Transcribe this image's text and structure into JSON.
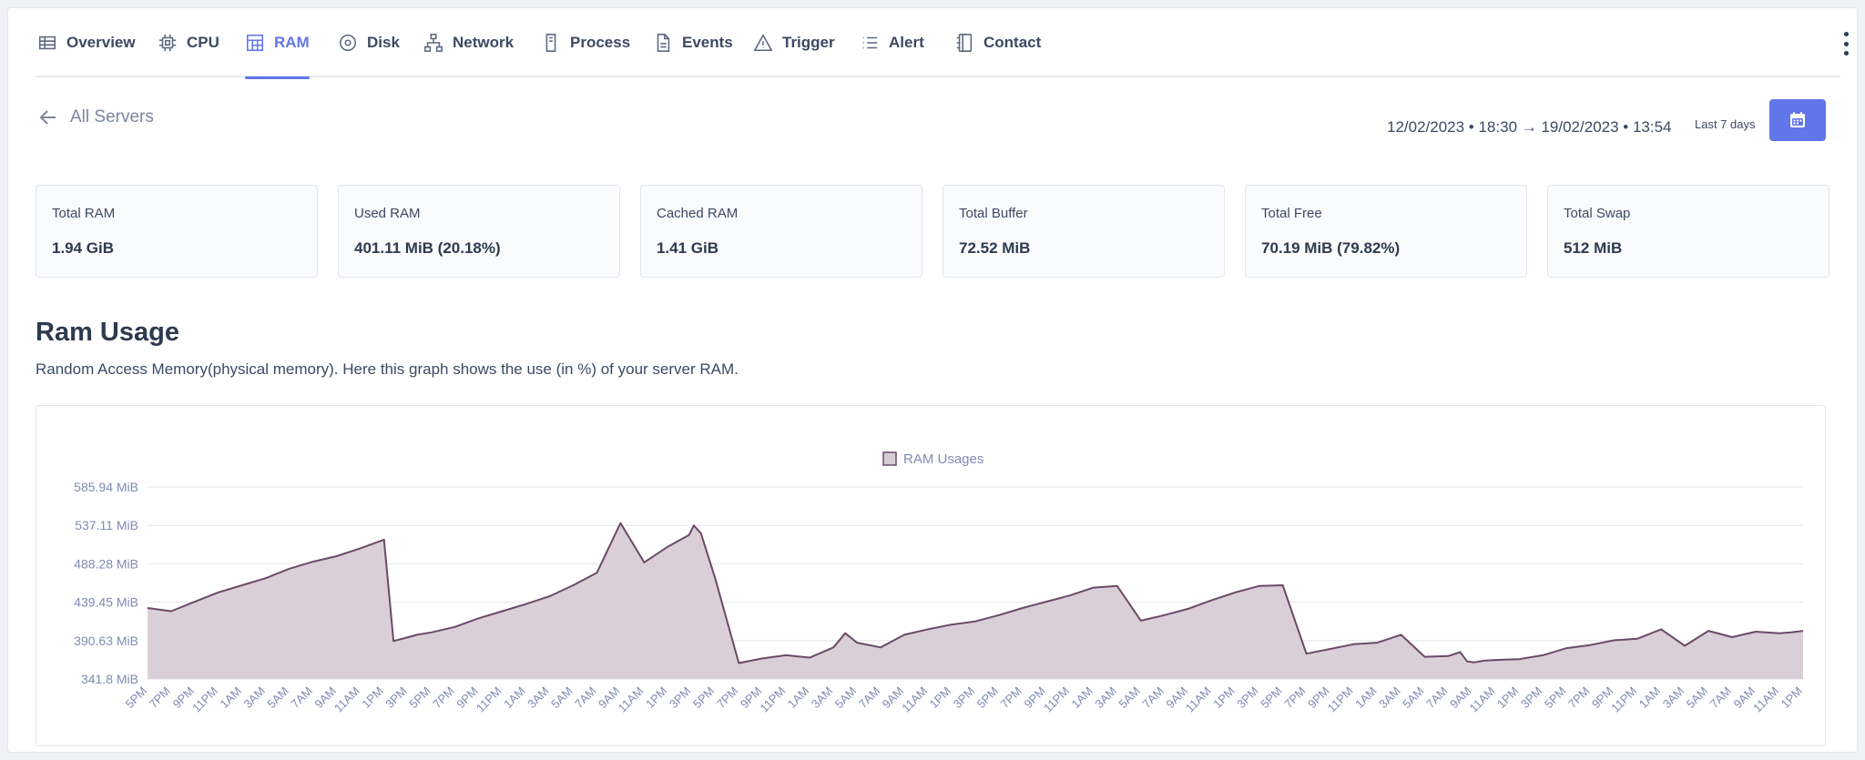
{
  "tabs": [
    {
      "label": "Overview",
      "icon": "table-icon",
      "active": false
    },
    {
      "label": "CPU",
      "icon": "cpu-icon",
      "active": false
    },
    {
      "label": "RAM",
      "icon": "layout-icon",
      "active": true
    },
    {
      "label": "Disk",
      "icon": "disk-icon",
      "active": false
    },
    {
      "label": "Network",
      "icon": "network-icon",
      "active": false
    },
    {
      "label": "Process",
      "icon": "process-icon",
      "active": false
    },
    {
      "label": "Events",
      "icon": "file-icon",
      "active": false
    },
    {
      "label": "Trigger",
      "icon": "warning-icon",
      "active": false
    },
    {
      "label": "Alert",
      "icon": "list-icon",
      "active": false
    },
    {
      "label": "Contact",
      "icon": "contact-book-icon",
      "active": false
    }
  ],
  "back_label": "All Servers",
  "date_range": "12/02/2023 • 18:30 → 19/02/2023 • 13:54",
  "preset": "Last 7 days",
  "cards": [
    {
      "label": "Total RAM",
      "value": "1.94 GiB"
    },
    {
      "label": "Used RAM",
      "value": "401.11 MiB (20.18%)"
    },
    {
      "label": "Cached RAM",
      "value": "1.41 GiB"
    },
    {
      "label": "Total Buffer",
      "value": "72.52 MiB"
    },
    {
      "label": "Total Free",
      "value": "70.19 MiB (79.82%)"
    },
    {
      "label": "Total Swap",
      "value": "512 MiB"
    }
  ],
  "section": {
    "title": "Ram Usage",
    "description": "Random Access Memory(physical memory). Here this graph shows the use (in %) of your server RAM."
  },
  "colors": {
    "accent": "#6176e8",
    "series_line": "#6b4a68",
    "series_fill": "#d8ccd6"
  },
  "chart_data": {
    "type": "area",
    "legend": "RAM Usages",
    "legend_position": "top-center",
    "grid": true,
    "y_unit": "MiB",
    "yticks": [
      "341.8 MiB",
      "390.63 MiB",
      "439.45 MiB",
      "488.28 MiB",
      "537.11 MiB",
      "585.94 MiB"
    ],
    "ylim": [
      341.8,
      585.94
    ],
    "xticks": [
      "5PM",
      "7PM",
      "9PM",
      "11PM",
      "1AM",
      "3AM",
      "5AM",
      "7AM",
      "9AM",
      "11AM",
      "1PM",
      "3PM",
      "5PM",
      "7PM",
      "9PM",
      "11PM",
      "1AM",
      "3AM",
      "5AM",
      "7AM",
      "9AM",
      "11AM",
      "1PM",
      "3PM",
      "5PM",
      "7PM",
      "9PM",
      "11PM",
      "1AM",
      "3AM",
      "5AM",
      "7AM",
      "9AM",
      "11AM",
      "1PM",
      "3PM",
      "5PM",
      "7PM",
      "9PM",
      "11PM",
      "1AM",
      "3AM",
      "5AM",
      "7AM",
      "9AM",
      "11AM",
      "1PM",
      "3PM",
      "5PM",
      "7PM",
      "9PM",
      "11PM",
      "1AM",
      "3AM",
      "5AM",
      "7AM",
      "9AM",
      "11AM",
      "1PM",
      "3PM",
      "5PM",
      "7PM",
      "9PM",
      "11PM",
      "1AM",
      "3AM",
      "5AM",
      "7AM",
      "9AM",
      "11AM",
      "1PM"
    ],
    "series": [
      {
        "name": "RAM Usages",
        "x": [
          0,
          1,
          2,
          3,
          4,
          5,
          6,
          7,
          8,
          9,
          10,
          10.4,
          10.9,
          11.4,
          12,
          13,
          14,
          15,
          16,
          17,
          18,
          19,
          20,
          21,
          22,
          22.9,
          23.1,
          23.4,
          24,
          25,
          26,
          27,
          28,
          29,
          29.5,
          30,
          31,
          32,
          33,
          34,
          35,
          36,
          37,
          38,
          39,
          40,
          41,
          42,
          43,
          44,
          45,
          46,
          47,
          48,
          49,
          50,
          51,
          52,
          53,
          54,
          55,
          55.5,
          55.8,
          56.1,
          56.5,
          57,
          58,
          59,
          60,
          61,
          62,
          63,
          64,
          65,
          66,
          67,
          68,
          69,
          69.5,
          70
        ],
        "values": [
          432,
          428,
          440,
          452,
          461,
          470,
          482,
          491,
          498,
          508,
          519,
          390,
          394,
          398,
          401,
          408,
          419,
          428,
          437,
          447,
          461,
          477,
          540,
          490,
          510,
          525,
          537,
          527,
          470,
          362,
          368,
          372,
          369,
          382,
          400,
          388,
          382,
          398,
          405,
          411,
          415,
          423,
          432,
          440,
          448,
          458,
          460,
          416,
          423,
          431,
          442,
          452,
          460,
          461,
          374,
          380,
          386,
          388,
          398,
          370,
          371,
          376,
          364,
          363,
          365,
          366,
          367,
          372,
          381,
          385,
          391,
          393,
          405,
          384,
          403,
          395,
          402,
          400,
          401,
          403
        ]
      }
    ]
  }
}
